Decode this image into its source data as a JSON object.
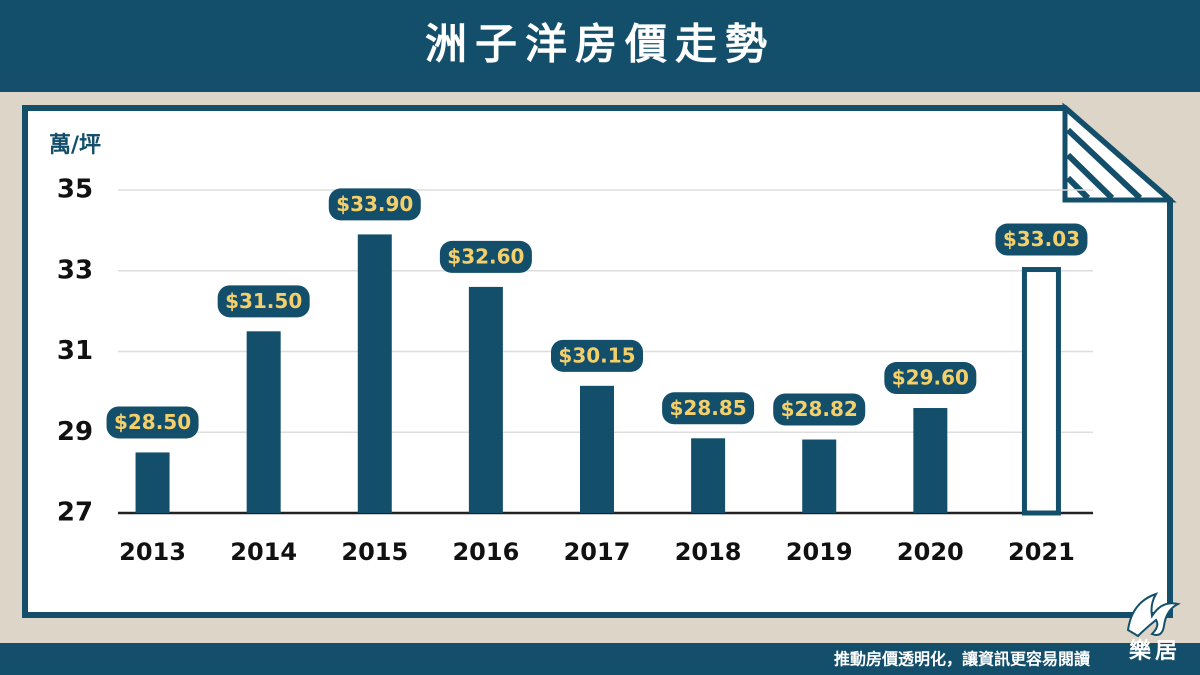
{
  "chart_data": {
    "type": "bar",
    "title": "洲子洋房價走勢",
    "y_label": "萬/坪",
    "categories": [
      "2013",
      "2014",
      "2015",
      "2016",
      "2017",
      "2018",
      "2019",
      "2020",
      "2021"
    ],
    "values": [
      28.5,
      31.5,
      33.9,
      32.6,
      30.15,
      28.85,
      28.82,
      29.6,
      33.03
    ],
    "value_labels": [
      "$28.50",
      "$31.50",
      "$33.90",
      "$32.60",
      "$30.15",
      "$28.85",
      "$28.82",
      "$29.60",
      "$33.03"
    ],
    "color": "#134f6b",
    "bar_fills": [
      "#134f6b",
      "#134f6b",
      "#134f6b",
      "#134f6b",
      "#134f6b",
      "#134f6b",
      "#134f6b",
      "#134f6b",
      "#ffffff"
    ],
    "label_color": "#f5d06a",
    "ylim": [
      27,
      35
    ],
    "yticks": [
      27,
      29,
      31,
      33,
      35
    ],
    "grid": true
  },
  "footer": "推動房價透明化，讓資訊更容易閱讀",
  "logo": "樂居"
}
